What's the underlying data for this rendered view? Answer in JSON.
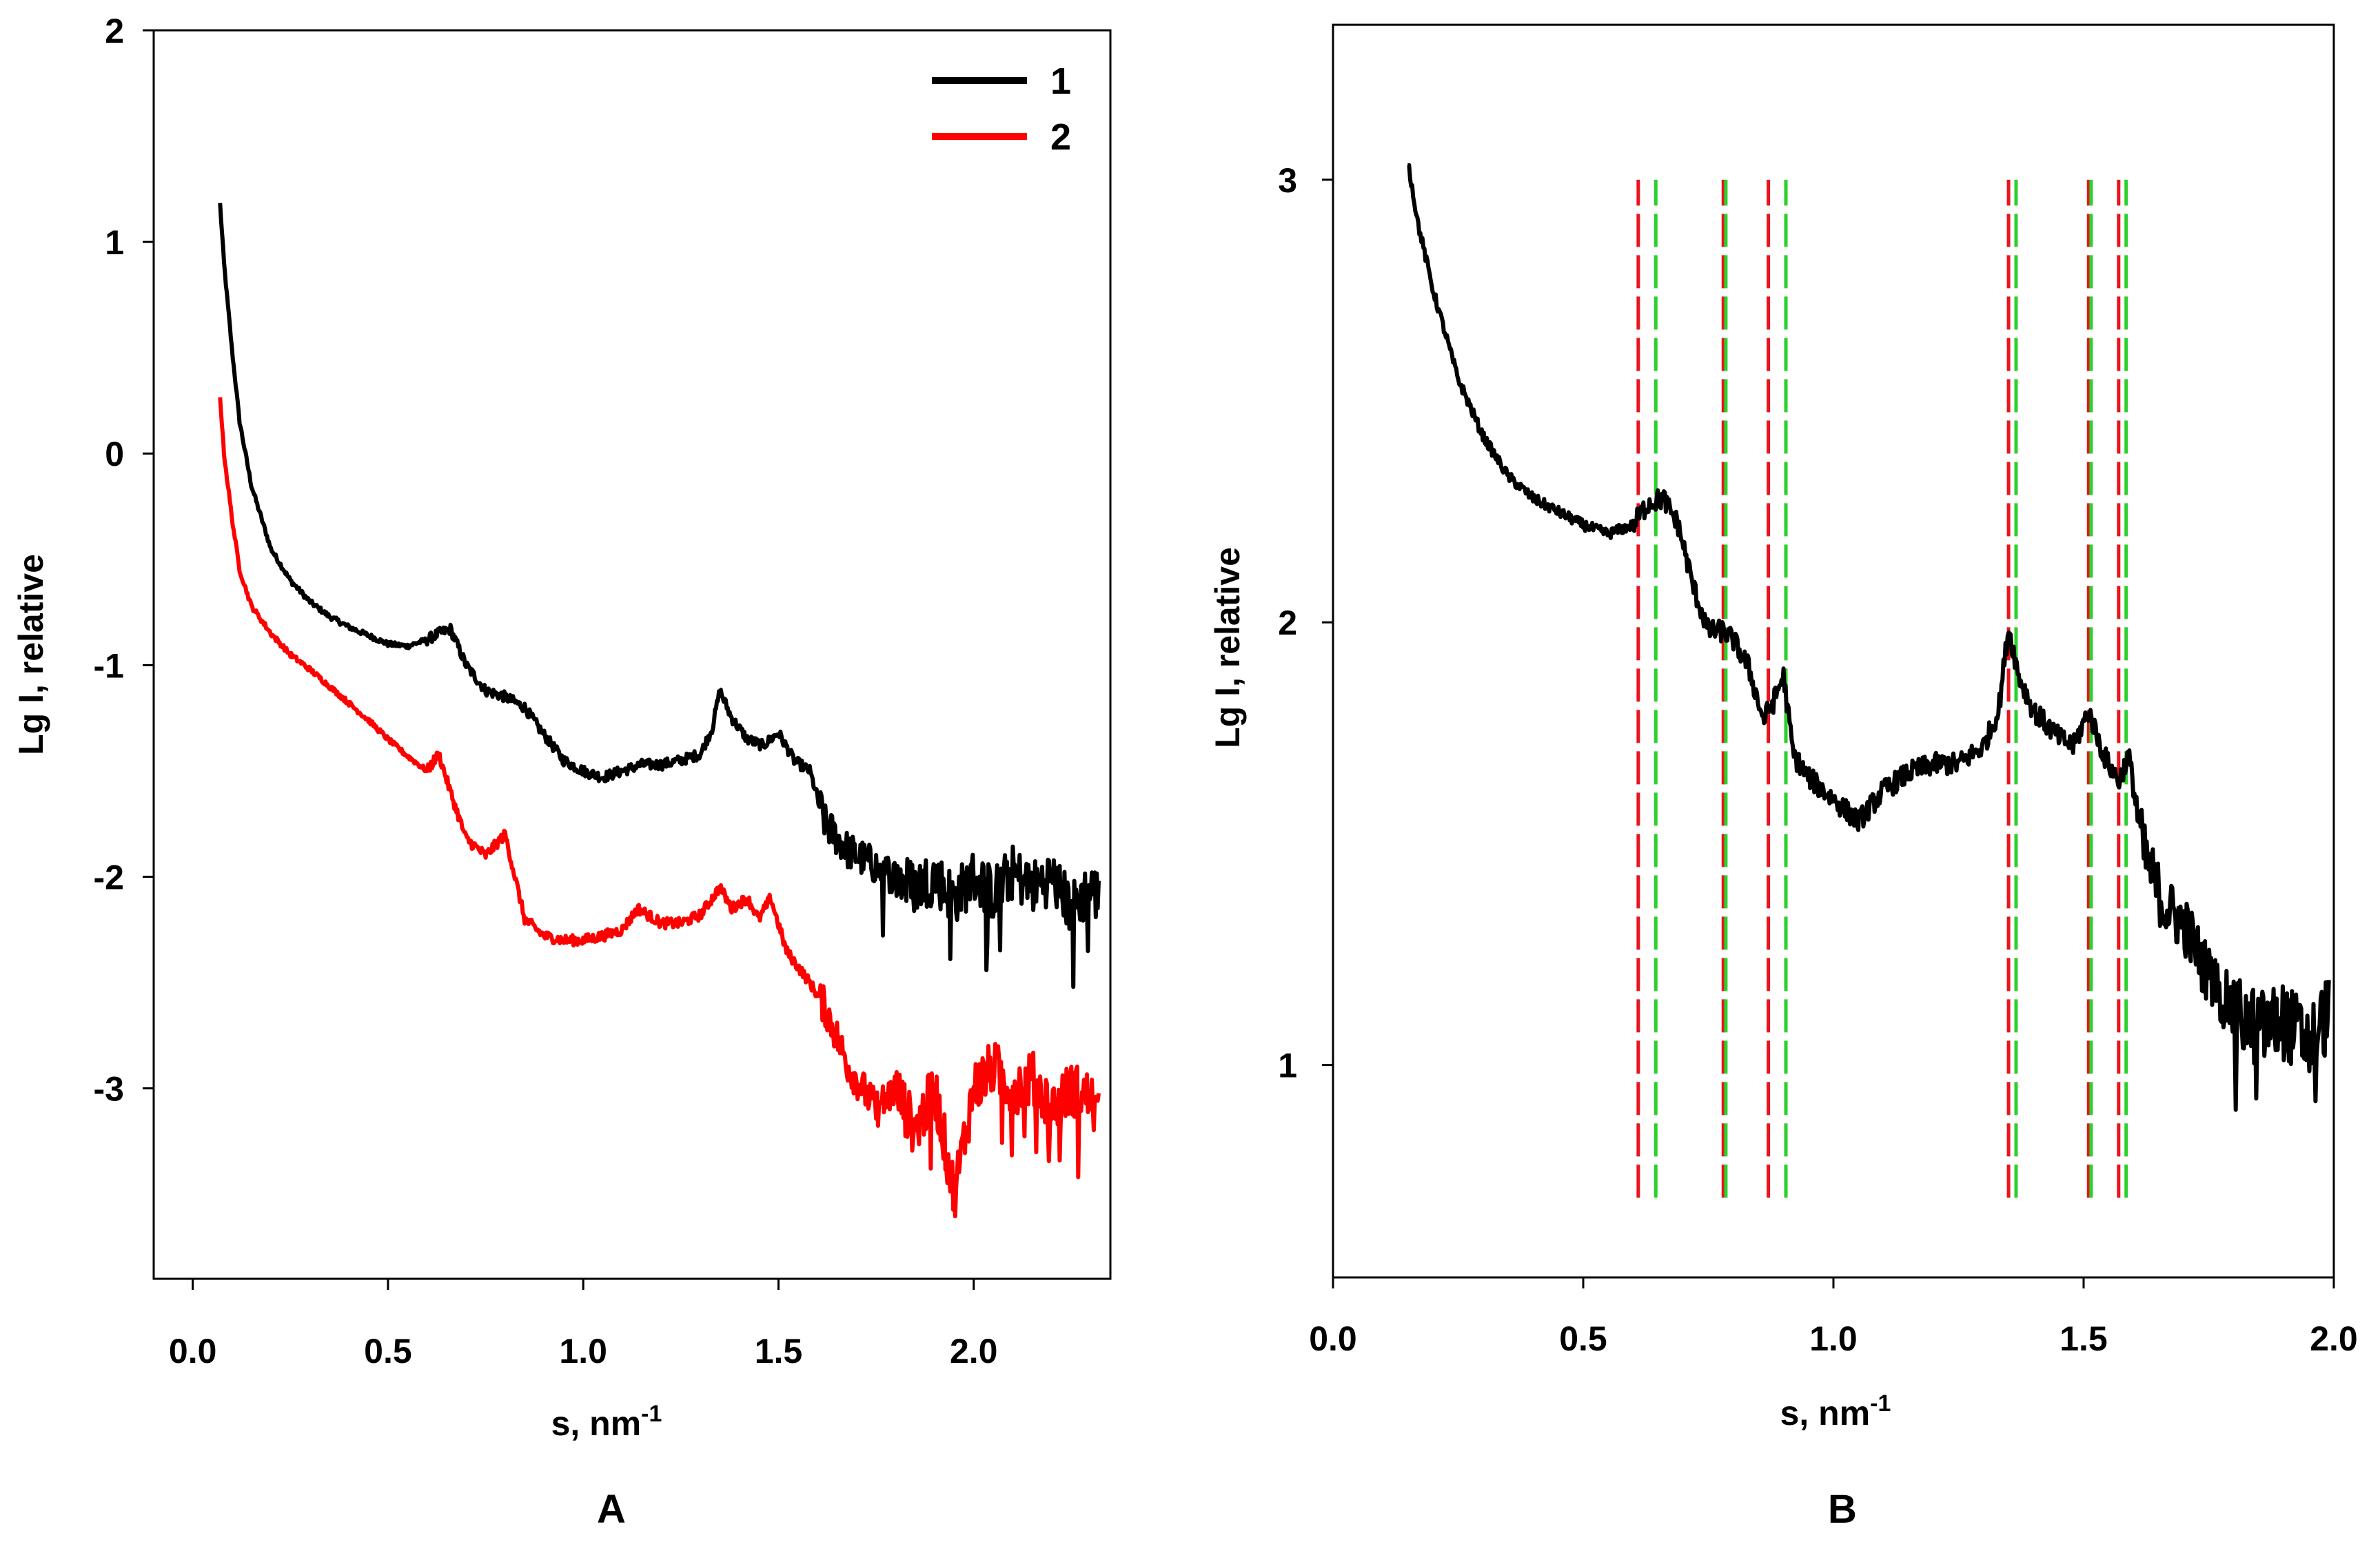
{
  "chart_data": [
    {
      "id": "A",
      "type": "line",
      "panel_label": "A",
      "xlabel": "s, nm",
      "xlabel_sup": "-1",
      "ylabel": "Lg I, relative",
      "xlim": [
        -0.1,
        2.35
      ],
      "ylim": [
        -3.9,
        2.0
      ],
      "xticks": [
        0.0,
        0.5,
        1.0,
        1.5,
        2.0
      ],
      "xtick_labels": [
        "0.0",
        "0.5",
        "1.0",
        "1.5",
        "2.0"
      ],
      "yticks": [
        -3,
        -2,
        -1,
        0,
        1,
        2
      ],
      "ytick_labels": [
        "-3",
        "-2",
        "-1",
        "0",
        "1",
        "2"
      ],
      "legend_position": "top-right",
      "series": [
        {
          "name": "1",
          "color": "#000000",
          "x": [
            0.07,
            0.08,
            0.1,
            0.12,
            0.15,
            0.2,
            0.25,
            0.3,
            0.35,
            0.4,
            0.45,
            0.5,
            0.55,
            0.6,
            0.63,
            0.66,
            0.7,
            0.75,
            0.8,
            0.85,
            0.88,
            0.9,
            0.95,
            1.0,
            1.05,
            1.1,
            1.15,
            1.2,
            1.25,
            1.3,
            1.33,
            1.35,
            1.38,
            1.42,
            1.46,
            1.5,
            1.54,
            1.58,
            1.62,
            1.68,
            1.75,
            1.8,
            1.85,
            1.9,
            1.95,
            2.0,
            2.05,
            2.1,
            2.15,
            2.2,
            2.25,
            2.3,
            2.32
          ],
          "y": [
            1.18,
            0.9,
            0.5,
            0.15,
            -0.15,
            -0.45,
            -0.6,
            -0.7,
            -0.77,
            -0.82,
            -0.86,
            -0.9,
            -0.91,
            -0.88,
            -0.85,
            -0.83,
            -1.0,
            -1.12,
            -1.15,
            -1.2,
            -1.28,
            -1.33,
            -1.45,
            -1.5,
            -1.53,
            -1.5,
            -1.47,
            -1.47,
            -1.45,
            -1.42,
            -1.3,
            -1.12,
            -1.25,
            -1.35,
            -1.38,
            -1.32,
            -1.45,
            -1.5,
            -1.75,
            -1.88,
            -1.95,
            -2.0,
            -2.05,
            -2.0,
            -2.1,
            -2.0,
            -2.08,
            -1.98,
            -2.05,
            -2.0,
            -2.15,
            -2.05,
            -2.1
          ]
        },
        {
          "name": "2",
          "color": "#ff0000",
          "x": [
            0.07,
            0.08,
            0.1,
            0.12,
            0.15,
            0.2,
            0.25,
            0.3,
            0.35,
            0.4,
            0.45,
            0.5,
            0.55,
            0.6,
            0.63,
            0.66,
            0.7,
            0.75,
            0.8,
            0.85,
            0.9,
            0.95,
            1.0,
            1.05,
            1.1,
            1.14,
            1.2,
            1.25,
            1.3,
            1.35,
            1.38,
            1.42,
            1.45,
            1.48,
            1.52,
            1.58,
            1.62,
            1.68,
            1.75,
            1.8,
            1.85,
            1.9,
            1.95,
            2.0,
            2.05,
            2.1,
            2.15,
            2.2,
            2.25,
            2.3,
            2.32
          ],
          "y": [
            0.27,
            0.0,
            -0.3,
            -0.55,
            -0.72,
            -0.85,
            -0.95,
            -1.02,
            -1.1,
            -1.18,
            -1.26,
            -1.35,
            -1.43,
            -1.5,
            -1.42,
            -1.6,
            -1.82,
            -1.9,
            -1.8,
            -2.2,
            -2.28,
            -2.3,
            -2.3,
            -2.28,
            -2.25,
            -2.15,
            -2.22,
            -2.22,
            -2.18,
            -2.05,
            -2.15,
            -2.1,
            -2.2,
            -2.1,
            -2.35,
            -2.5,
            -2.62,
            -2.9,
            -3.1,
            -3.0,
            -3.2,
            -3.0,
            -3.5,
            -3.0,
            -2.9,
            -3.0,
            -2.95,
            -3.1,
            -3.0,
            -3.05,
            -3.15
          ]
        }
      ],
      "fine_structure": "noisy"
    },
    {
      "id": "B",
      "type": "line",
      "panel_label": "B",
      "xlabel": "s, nm",
      "xlabel_sup": "-1",
      "ylabel": "Lg I, relative",
      "xlim": [
        0.0,
        2.0
      ],
      "ylim": [
        0.52,
        3.35
      ],
      "xticks": [
        0.0,
        0.5,
        1.0,
        1.5,
        2.0
      ],
      "xtick_labels": [
        "0.0",
        "0.5",
        "1.0",
        "1.5",
        "2.0"
      ],
      "yticks": [
        1,
        2,
        3
      ],
      "ytick_labels": [
        "1",
        "2",
        "3"
      ],
      "series": [
        {
          "name": "curve",
          "color": "#000000",
          "x": [
            0.15,
            0.17,
            0.2,
            0.25,
            0.3,
            0.35,
            0.4,
            0.45,
            0.5,
            0.55,
            0.6,
            0.63,
            0.66,
            0.69,
            0.72,
            0.75,
            0.78,
            0.8,
            0.83,
            0.86,
            0.88,
            0.9,
            0.92,
            0.95,
            1.0,
            1.05,
            1.1,
            1.15,
            1.2,
            1.25,
            1.3,
            1.33,
            1.35,
            1.37,
            1.4,
            1.45,
            1.48,
            1.51,
            1.54,
            1.57,
            1.59,
            1.62,
            1.66,
            1.7,
            1.75,
            1.8,
            1.85,
            1.9,
            1.95,
            1.99
          ],
          "y": [
            3.04,
            2.9,
            2.75,
            2.55,
            2.42,
            2.33,
            2.28,
            2.25,
            2.22,
            2.2,
            2.22,
            2.27,
            2.28,
            2.22,
            2.08,
            1.98,
            1.98,
            1.96,
            1.9,
            1.78,
            1.82,
            1.88,
            1.7,
            1.65,
            1.6,
            1.55,
            1.62,
            1.66,
            1.68,
            1.68,
            1.72,
            1.8,
            1.99,
            1.88,
            1.8,
            1.74,
            1.72,
            1.8,
            1.7,
            1.64,
            1.7,
            1.48,
            1.36,
            1.32,
            1.2,
            1.12,
            1.08,
            1.1,
            1.05,
            1.12
          ]
        }
      ],
      "fine_structure": "noisy",
      "reference_lines": [
        {
          "color": "#e8141e",
          "x": [
            0.61,
            0.78,
            0.87,
            1.35,
            1.51,
            1.57
          ]
        },
        {
          "color": "#2bd12b",
          "x": [
            0.645,
            0.785,
            0.905,
            1.365,
            1.515,
            1.585
          ]
        }
      ],
      "reference_line_range": [
        0.7,
        3.0
      ]
    }
  ]
}
